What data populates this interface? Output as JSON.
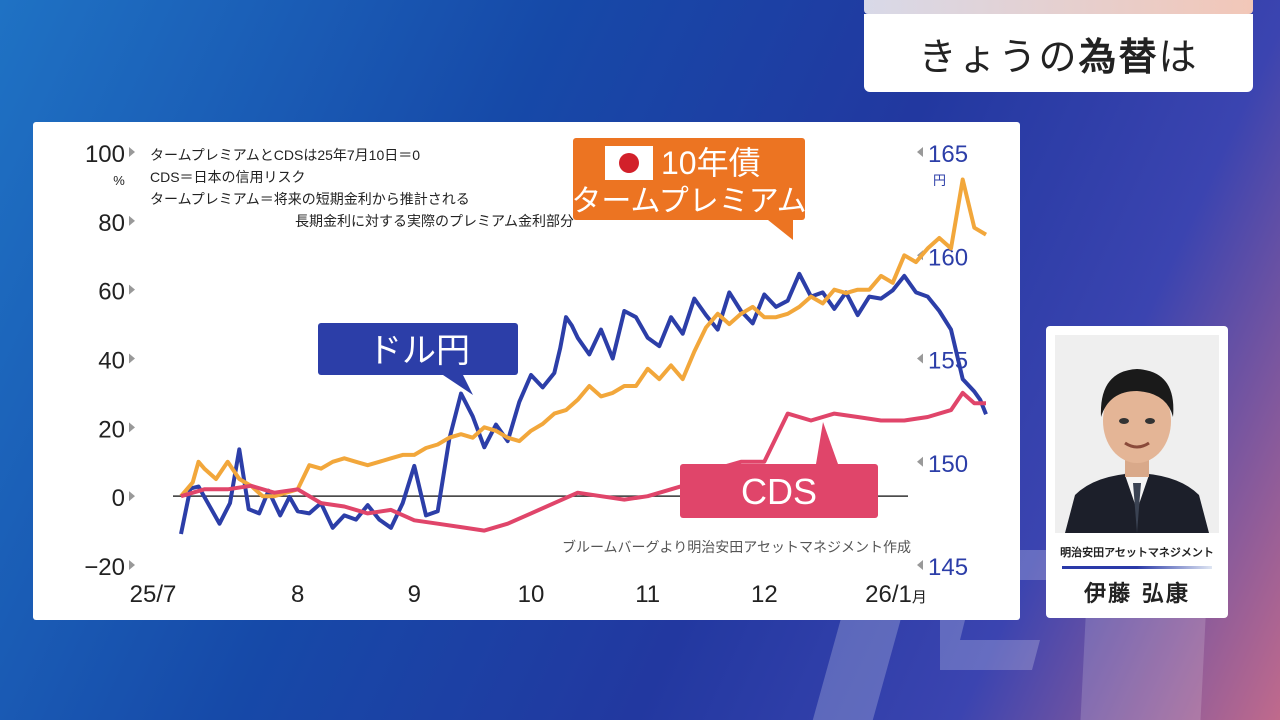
{
  "header": {
    "title_pre": "きょうの",
    "title_highlight": "為替",
    "title_post": "は"
  },
  "person": {
    "affiliation": "明治安田アセットマネジメント",
    "name": "伊藤 弘康"
  },
  "chart_data": {
    "type": "line",
    "title": "",
    "left_axis": {
      "ticks": [
        100,
        80,
        60,
        40,
        20,
        0,
        -20
      ],
      "labels": [
        "100",
        "80",
        "60",
        "40",
        "20",
        "0",
        "−20"
      ],
      "unit": "%",
      "ylim": [
        -20,
        100
      ]
    },
    "right_axis": {
      "ticks": [
        165,
        160,
        155,
        150,
        145
      ],
      "labels": [
        "165",
        "160",
        "155",
        "150",
        "145"
      ],
      "unit": "円",
      "ylim": [
        145,
        165
      ]
    },
    "x_ticks": [
      "25/7",
      "8",
      "9",
      "10",
      "11",
      "12",
      "26/1月"
    ],
    "notes": [
      "タームプレミアムとCDSは25年7月10日＝0",
      "CDS＝日本の信用リスク",
      "タームプレミアム＝将来の短期金利から推計される",
      "長期金利に対する実際のプレミアム金利部分"
    ],
    "source": "ブルームバーグより明治安田アセットマネジメント作成",
    "callouts": {
      "usdjpy": "ドル円",
      "tp_line1": "10年債",
      "tp_line2": "タームプレミアム",
      "cds": "CDS"
    },
    "colors": {
      "usdjpy": "#2c3ea8",
      "term_premium": "#f2a73b",
      "cds": "#e0456a",
      "tp_box": "#ec7422",
      "grid": "#333333",
      "axis_left": "#222222",
      "axis_right": "#2c3ea8"
    },
    "series": [
      {
        "name": "ドル円",
        "axis": "right",
        "color": "#2c3ea8",
        "x": [
          0,
          0.08,
          0.15,
          0.25,
          0.33,
          0.42,
          0.5,
          0.58,
          0.67,
          0.75,
          0.85,
          0.93,
          1.0,
          1.1,
          1.2,
          1.3,
          1.4,
          1.5,
          1.6,
          1.7,
          1.8,
          1.9,
          2.0,
          2.1,
          2.2,
          2.3,
          2.4,
          2.5,
          2.6,
          2.7,
          2.8,
          2.9,
          3.0,
          3.1,
          3.2,
          3.25,
          3.3,
          3.35,
          3.4,
          3.5,
          3.6,
          3.7,
          3.8,
          3.9,
          4.0,
          4.1,
          4.2,
          4.3,
          4.4,
          4.5,
          4.6,
          4.7,
          4.8,
          4.9,
          5.0,
          5.1,
          5.2,
          5.3,
          5.4,
          5.5,
          5.6,
          5.7,
          5.8,
          5.9,
          6.0,
          6.1,
          6.2,
          6.3,
          6.4,
          6.5,
          6.6,
          6.7,
          6.8,
          6.85,
          6.9
        ],
        "values": [
          146.5,
          148.7,
          148.8,
          147.8,
          147.0,
          148.0,
          150.6,
          147.7,
          147.5,
          148.6,
          147.4,
          148.3,
          147.6,
          147.5,
          148.0,
          146.8,
          147.4,
          147.2,
          147.9,
          147.2,
          146.8,
          148.0,
          149.8,
          147.4,
          147.6,
          151.1,
          153.3,
          152.2,
          150.7,
          151.8,
          151.0,
          152.9,
          154.2,
          153.6,
          154.3,
          155.5,
          157.0,
          156.6,
          156.0,
          155.2,
          156.4,
          155.0,
          157.3,
          157.0,
          156.0,
          155.6,
          157.0,
          156.2,
          157.9,
          157.1,
          156.4,
          158.2,
          157.3,
          156.7,
          158.1,
          157.5,
          157.8,
          159.1,
          158.0,
          158.2,
          157.4,
          158.2,
          157.1,
          158.0,
          157.9,
          158.3,
          159.0,
          158.2,
          158.0,
          157.3,
          156.4,
          154.0,
          153.4,
          153.0,
          152.3
        ]
      },
      {
        "name": "10年債タームプレミアム",
        "axis": "left",
        "color": "#f2a73b",
        "x": [
          0,
          0.1,
          0.15,
          0.2,
          0.3,
          0.4,
          0.5,
          0.6,
          0.7,
          0.8,
          0.9,
          1.0,
          1.1,
          1.2,
          1.3,
          1.4,
          1.5,
          1.6,
          1.7,
          1.8,
          1.9,
          2.0,
          2.1,
          2.2,
          2.3,
          2.4,
          2.5,
          2.6,
          2.7,
          2.8,
          2.9,
          3.0,
          3.1,
          3.2,
          3.3,
          3.4,
          3.5,
          3.6,
          3.7,
          3.8,
          3.9,
          4.0,
          4.1,
          4.2,
          4.3,
          4.4,
          4.5,
          4.6,
          4.7,
          4.8,
          4.9,
          5.0,
          5.1,
          5.2,
          5.3,
          5.4,
          5.5,
          5.6,
          5.7,
          5.8,
          5.9,
          6.0,
          6.1,
          6.2,
          6.3,
          6.4,
          6.5,
          6.6,
          6.7,
          6.8,
          6.9
        ],
        "values": [
          0,
          4,
          10,
          8,
          5,
          10,
          5,
          3,
          0,
          0,
          1,
          2,
          9,
          8,
          10,
          11,
          10,
          9,
          10,
          11,
          12,
          12,
          14,
          15,
          17,
          18,
          17,
          20,
          19,
          17,
          16,
          19,
          21,
          24,
          25,
          28,
          32,
          29,
          30,
          32,
          32,
          37,
          34,
          38,
          34,
          42,
          49,
          53,
          50,
          53,
          55,
          52,
          52,
          53,
          55,
          58,
          56,
          60,
          59,
          60,
          60,
          64,
          62,
          70,
          68,
          72,
          75,
          72,
          92,
          78,
          76
        ]
      },
      {
        "name": "CDS",
        "axis": "left",
        "color": "#e0456a",
        "x": [
          0,
          0.2,
          0.4,
          0.6,
          0.8,
          1.0,
          1.2,
          1.4,
          1.6,
          1.8,
          2.0,
          2.2,
          2.4,
          2.6,
          2.8,
          3.0,
          3.2,
          3.4,
          3.6,
          3.8,
          4.0,
          4.2,
          4.4,
          4.6,
          4.8,
          5.0,
          5.2,
          5.4,
          5.6,
          5.8,
          6.0,
          6.2,
          6.4,
          6.6,
          6.7,
          6.8,
          6.9
        ],
        "values": [
          0,
          2,
          2,
          3,
          1,
          2,
          -2,
          -3,
          -5,
          -4,
          -7,
          -8,
          -9,
          -10,
          -8,
          -5,
          -2,
          1,
          0,
          -1,
          0,
          2,
          4,
          8,
          10,
          10,
          24,
          22,
          24,
          23,
          22,
          22,
          23,
          25,
          30,
          27,
          27
        ]
      }
    ]
  }
}
